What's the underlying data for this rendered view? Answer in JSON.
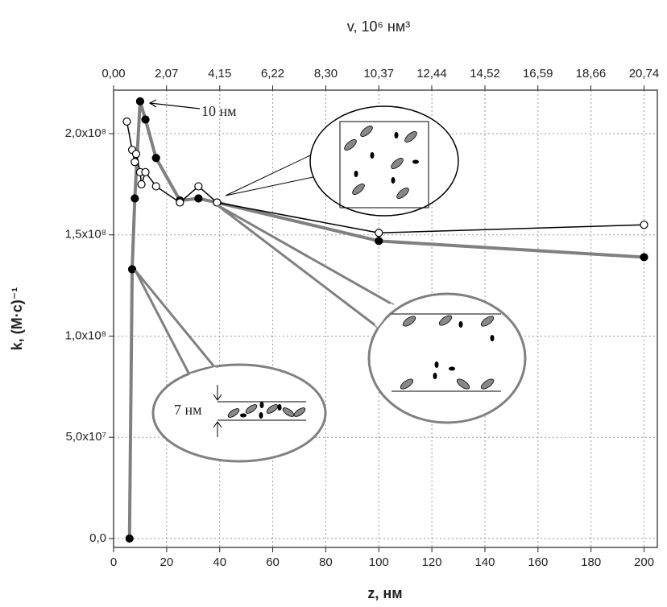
{
  "chart_data": {
    "type": "line",
    "title": "v, 10⁶ нм³",
    "x_label": "z, нм",
    "y_label": "k, (M·c)⁻¹",
    "xlim": [
      0,
      205
    ],
    "xticks": [
      0,
      20,
      40,
      60,
      80,
      100,
      120,
      140,
      160,
      180,
      200
    ],
    "x2lim": [
      0,
      21.26
    ],
    "x2ticks": [
      {
        "value": 0,
        "label": "0,00"
      },
      {
        "value": 2.07,
        "label": "2,07"
      },
      {
        "value": 4.15,
        "label": "4,15"
      },
      {
        "value": 6.22,
        "label": "6,22"
      },
      {
        "value": 8.3,
        "label": "8,30"
      },
      {
        "value": 10.37,
        "label": "10,37"
      },
      {
        "value": 12.44,
        "label": "12,44"
      },
      {
        "value": 14.52,
        "label": "14,52"
      },
      {
        "value": 16.59,
        "label": "16,59"
      },
      {
        "value": 18.66,
        "label": "18,66"
      },
      {
        "value": 20.74,
        "label": "20,74"
      }
    ],
    "ylim": [
      -4400000,
      221500000
    ],
    "yticks": [
      {
        "value": 0,
        "label": "0,0"
      },
      {
        "value": 50000000,
        "label": "5,0x10⁷"
      },
      {
        "value": 100000000,
        "label": "1,0x10⁸"
      },
      {
        "value": 150000000,
        "label": "1,5x10⁸"
      },
      {
        "value": 200000000,
        "label": "2,0x10⁸"
      }
    ],
    "grid": true,
    "series": [
      {
        "color": "#808080",
        "marker_fill": "#000000",
        "line_width": 4,
        "x": [
          6,
          7,
          8,
          10,
          12,
          16,
          25,
          32,
          39,
          100,
          200
        ],
        "values": [
          0,
          133000000,
          168000000,
          216000000,
          207000000,
          188000000,
          167000000,
          168000000,
          166000000,
          147000000,
          139000000
        ]
      },
      {
        "color": "#000000",
        "marker_fill": "#ffffff",
        "line_width": 1.5,
        "x": [
          5,
          7,
          8,
          8.5,
          10,
          10.5,
          12,
          16,
          25,
          32,
          39,
          100,
          200
        ],
        "values": [
          206000000,
          192000000,
          186000000,
          190000000,
          181000000,
          175000000,
          181000000,
          174000000,
          166000000,
          174000000,
          166000000,
          151000000,
          155000000
        ]
      }
    ],
    "annotations": [
      "10 нм",
      "7 нм"
    ]
  }
}
